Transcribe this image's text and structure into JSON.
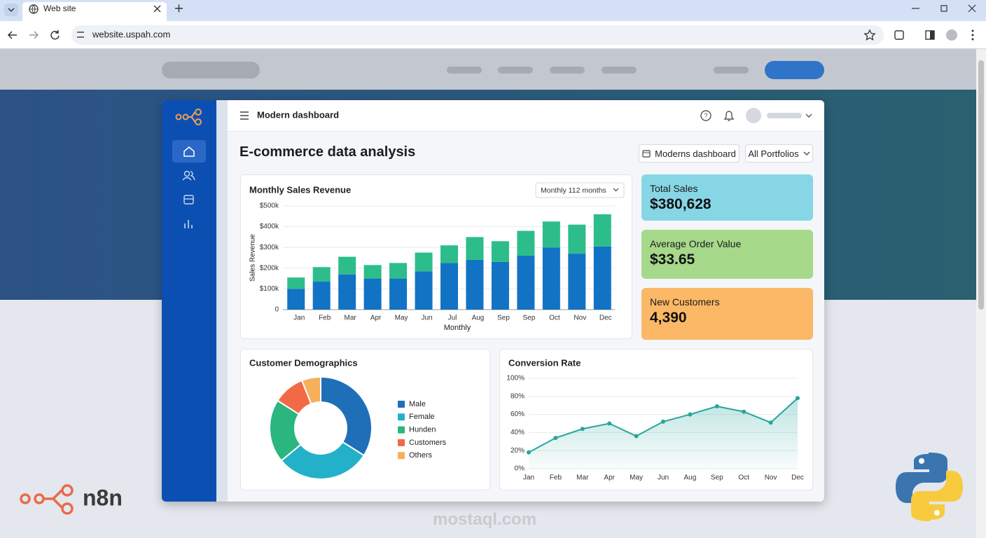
{
  "browser": {
    "tab_title": "Web site",
    "url": "website.uspah.com"
  },
  "dashboard": {
    "header_title": "Modern dashboard",
    "page_title": "E-commerce data analysis",
    "buttons": [
      "Moderns dashboard",
      "All Portfolios"
    ],
    "kpis": [
      {
        "label": "Total Sales",
        "value": "$380,628",
        "color": "#86d6e6"
      },
      {
        "label": "Average Order Value",
        "value": "$33.65",
        "color": "#a6d98a"
      },
      {
        "label": "New Customers",
        "value": "4,390",
        "color": "#fbb866"
      }
    ]
  },
  "watermarks": [
    "n8n",
    "mostaql.com"
  ],
  "chart_data": [
    {
      "type": "bar",
      "stacked": true,
      "title": "Monthly Sales Revenue",
      "dropdown": "Monthly 112 months",
      "ylabel": "Sales Revenue",
      "xlabel": "Monthly",
      "categories": [
        "Jan",
        "Feb",
        "Mar",
        "Apr",
        "May",
        "Jun",
        "Jul",
        "Aug",
        "Sep",
        "Sep",
        "Oct",
        "Nov",
        "Dec"
      ],
      "series": [
        {
          "color": "#1273c4",
          "values": [
            100000,
            135000,
            170000,
            150000,
            150000,
            185000,
            225000,
            240000,
            230000,
            260000,
            300000,
            270000,
            305000
          ]
        },
        {
          "color": "#2dbd8a",
          "values": [
            55000,
            70000,
            85000,
            65000,
            75000,
            90000,
            85000,
            110000,
            100000,
            120000,
            125000,
            140000,
            155000
          ]
        }
      ],
      "ylim": [
        0,
        500000
      ],
      "yticks": [
        0,
        {
          "value": 100000,
          "label": "$100k"
        },
        {
          "value": 200000,
          "label": "$200k"
        },
        {
          "value": 300000,
          "label": "$300k"
        },
        {
          "value": 400000,
          "label": "$400k"
        },
        {
          "value": 500000,
          "label": "$500k"
        }
      ],
      "grid": true
    },
    {
      "type": "donut",
      "title": "Customer Demographics",
      "categories": [
        "Male",
        "Female",
        "Hunden",
        "Customers",
        "Others"
      ],
      "values": [
        34,
        30,
        20,
        10,
        6
      ],
      "colors": [
        "#1e6fb8",
        "#22b1c9",
        "#2bb57f",
        "#f26a45",
        "#f6b05a"
      ]
    },
    {
      "type": "line",
      "title": "Conversion Rate",
      "categories": [
        "Jan",
        "Feb",
        "Mar",
        "Apr",
        "May",
        "Jun",
        "Aug",
        "Sep",
        "Oct",
        "Nov",
        "Dec"
      ],
      "values": [
        18,
        34,
        44,
        50,
        36,
        52,
        60,
        69,
        63,
        51,
        78
      ],
      "color": "#26a69a",
      "ylim": [
        0,
        100
      ],
      "yticks": [
        {
          "value": 0,
          "label": "0%"
        },
        {
          "value": 20,
          "label": "20%"
        },
        {
          "value": 40,
          "label": "40%"
        },
        {
          "value": 60,
          "label": "60%"
        },
        {
          "value": 80,
          "label": "80%"
        },
        {
          "value": 100,
          "label": "100%"
        }
      ],
      "grid": true
    }
  ]
}
